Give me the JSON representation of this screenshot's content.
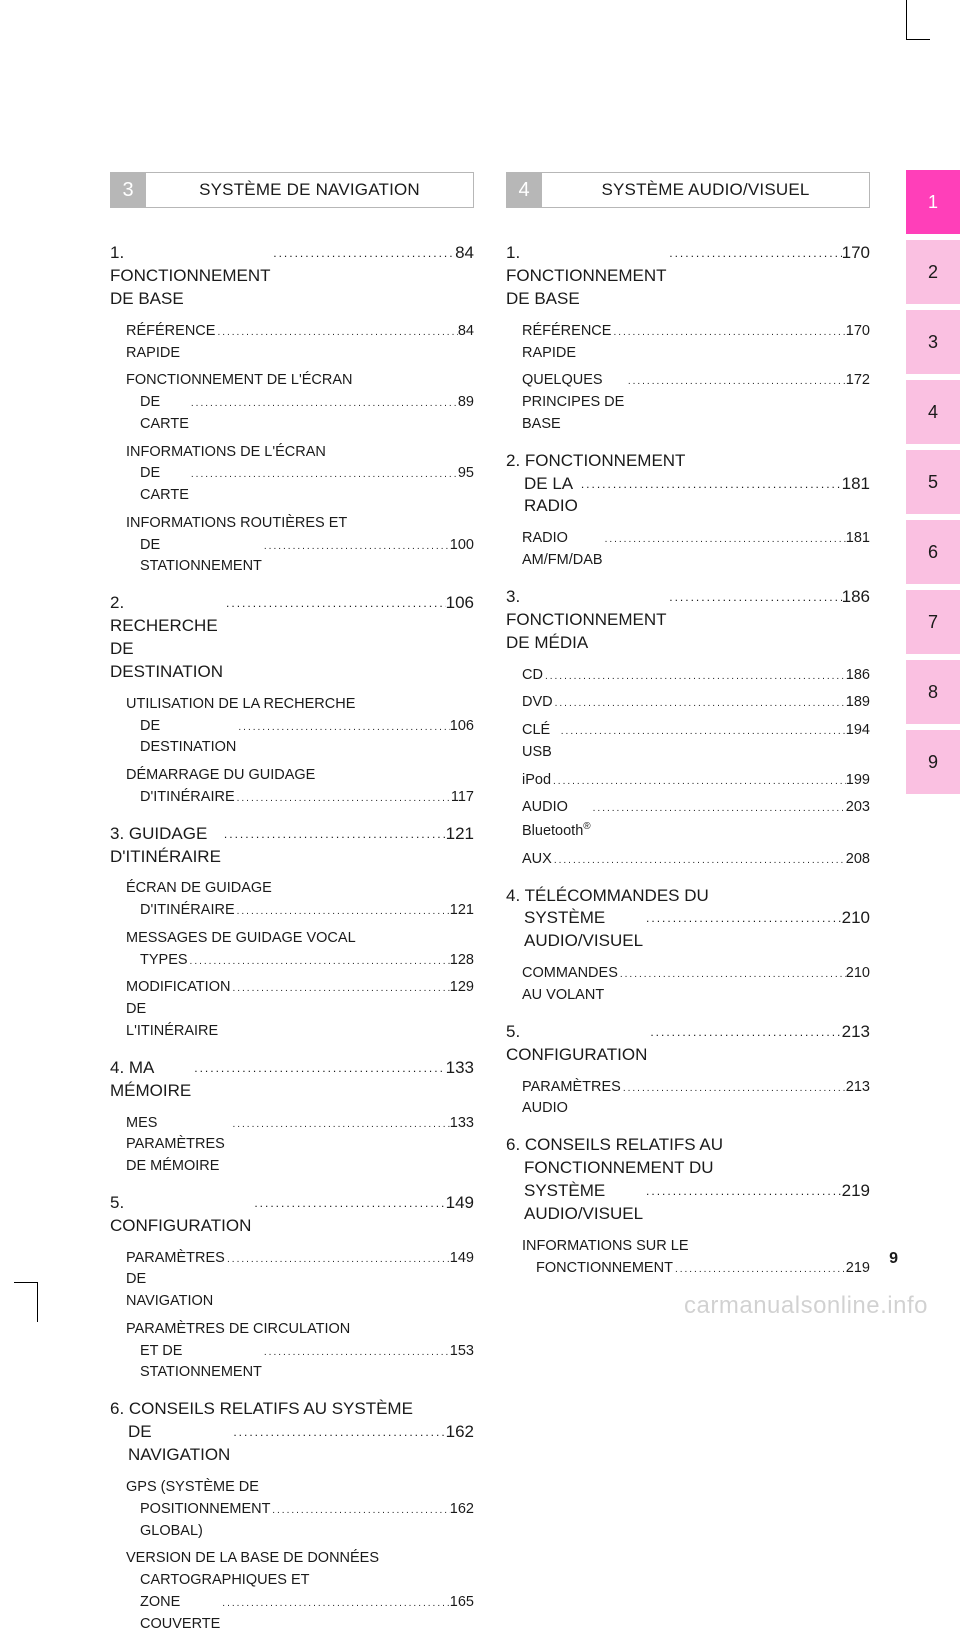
{
  "page_number": "9",
  "watermark": "carmanualsonline.info",
  "tabs": [
    {
      "n": "1",
      "bg": "#ff3fb9",
      "fg": "#ffffff"
    },
    {
      "n": "2",
      "bg": "#fac0e1",
      "fg": "#1a1a1a"
    },
    {
      "n": "3",
      "bg": "#fac0e1",
      "fg": "#1a1a1a"
    },
    {
      "n": "4",
      "bg": "#fac0e1",
      "fg": "#1a1a1a"
    },
    {
      "n": "5",
      "bg": "#fac0e1",
      "fg": "#1a1a1a"
    },
    {
      "n": "6",
      "bg": "#fac0e1",
      "fg": "#1a1a1a"
    },
    {
      "n": "7",
      "bg": "#fac0e1",
      "fg": "#1a1a1a"
    },
    {
      "n": "8",
      "bg": "#fac0e1",
      "fg": "#1a1a1a"
    },
    {
      "n": "9",
      "bg": "#fac0e1",
      "fg": "#1a1a1a"
    }
  ],
  "left": {
    "num": "3",
    "title": "SYSTÈME DE NAVIGATION",
    "groups": [
      {
        "h": {
          "t": "1. FONCTIONNEMENT DE BASE",
          "p": "84"
        },
        "items": [
          {
            "t": "RÉFÉRENCE RAPIDE",
            "p": "84"
          },
          {
            "l1": "FONCTIONNEMENT DE L'ÉCRAN",
            "l2": "DE CARTE",
            "p": "89"
          },
          {
            "l1": "INFORMATIONS DE L'ÉCRAN",
            "l2": "DE CARTE",
            "p": "95"
          },
          {
            "l1": "INFORMATIONS ROUTIÈRES ET",
            "l2": "DE STATIONNEMENT",
            "p": "100"
          }
        ]
      },
      {
        "h": {
          "t": "2. RECHERCHE DE DESTINATION",
          "p": "106"
        },
        "items": [
          {
            "l1": "UTILISATION DE LA RECHERCHE",
            "l2": "DE DESTINATION",
            "p": "106"
          },
          {
            "l1": "DÉMARRAGE DU GUIDAGE",
            "l2": "D'ITINÉRAIRE",
            "p": "117"
          }
        ]
      },
      {
        "h": {
          "t": "3. GUIDAGE D'ITINÉRAIRE",
          "p": "121"
        },
        "items": [
          {
            "l1": "ÉCRAN DE GUIDAGE",
            "l2": "D'ITINÉRAIRE",
            "p": "121"
          },
          {
            "l1": "MESSAGES DE GUIDAGE VOCAL",
            "l2": "TYPES",
            "p": "128"
          },
          {
            "t": "MODIFICATION DE L'ITINÉRAIRE",
            "p": "129"
          }
        ]
      },
      {
        "h": {
          "t": "4. MA MÉMOIRE",
          "p": "133"
        },
        "items": [
          {
            "t": "MES PARAMÈTRES DE MÉMOIRE",
            "p": "133"
          }
        ]
      },
      {
        "h": {
          "t": "5. CONFIGURATION",
          "p": "149"
        },
        "items": [
          {
            "t": "PARAMÈTRES DE NAVIGATION",
            "p": "149"
          },
          {
            "l1": "PARAMÈTRES DE CIRCULATION",
            "l2": "ET DE STATIONNEMENT",
            "p": "153"
          }
        ]
      },
      {
        "h": {
          "l1": "6. CONSEILS RELATIFS AU SYSTÈME",
          "l2": "DE NAVIGATION",
          "p": "162"
        },
        "items": [
          {
            "l1": "GPS (SYSTÈME DE",
            "l2": "POSITIONNEMENT GLOBAL)",
            "p": "162"
          },
          {
            "l1": "VERSION DE LA BASE DE DONNÉES",
            "l2a": "CARTOGRAPHIQUES ET",
            "l2": "ZONE COUVERTE",
            "p": "165"
          }
        ]
      }
    ]
  },
  "right": {
    "num": "4",
    "title": "SYSTÈME AUDIO/VISUEL",
    "groups": [
      {
        "h": {
          "t": "1. FONCTIONNEMENT DE BASE",
          "p": "170"
        },
        "items": [
          {
            "t": "RÉFÉRENCE RAPIDE",
            "p": "170"
          },
          {
            "t": "QUELQUES PRINCIPES DE BASE",
            "p": "172"
          }
        ]
      },
      {
        "h": {
          "l1": "2. FONCTIONNEMENT",
          "l2": "DE LA RADIO",
          "p": "181"
        },
        "items": [
          {
            "t": "RADIO AM/FM/DAB",
            "p": "181"
          }
        ]
      },
      {
        "h": {
          "t": "3. FONCTIONNEMENT DE MÉDIA",
          "p": "186"
        },
        "items": [
          {
            "t": "CD",
            "p": "186"
          },
          {
            "t": "DVD",
            "p": "189"
          },
          {
            "t": "CLÉ USB",
            "p": "194"
          },
          {
            "t": "iPod",
            "p": "199"
          },
          {
            "t": "AUDIO Bluetooth",
            "sup": "®",
            "p": "203"
          },
          {
            "t": "AUX",
            "p": "208"
          }
        ]
      },
      {
        "h": {
          "l1": "4. TÉLÉCOMMANDES DU",
          "l2": "SYSTÈME AUDIO/VISUEL",
          "p": "210"
        },
        "items": [
          {
            "t": "COMMANDES AU VOLANT",
            "p": "210"
          }
        ]
      },
      {
        "h": {
          "t": "5. CONFIGURATION",
          "p": "213"
        },
        "items": [
          {
            "t": "PARAMÈTRES AUDIO",
            "p": "213"
          }
        ]
      },
      {
        "h": {
          "l1": "6. CONSEILS RELATIFS AU",
          "l2a": "FONCTIONNEMENT DU",
          "l2": "SYSTÈME AUDIO/VISUEL",
          "p": "219"
        },
        "items": [
          {
            "l1": "INFORMATIONS SUR LE",
            "l2": "FONCTIONNEMENT",
            "p": "219"
          }
        ]
      }
    ]
  }
}
